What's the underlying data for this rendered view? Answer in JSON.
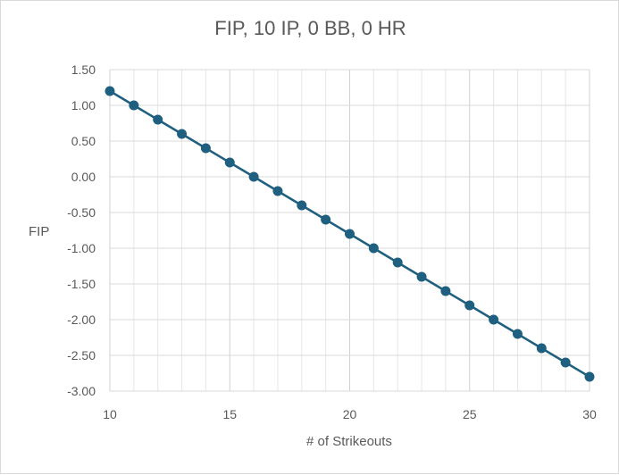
{
  "chart_data": {
    "type": "scatter",
    "title": "FIP, 10 IP, 0 BB, 0 HR",
    "xlabel": "# of Strikeouts",
    "ylabel": "FIP",
    "xlim": [
      10,
      30
    ],
    "ylim": [
      -3.0,
      1.5
    ],
    "x_ticks": [
      "10",
      "15",
      "20",
      "25",
      "30"
    ],
    "y_ticks": [
      "1.50",
      "1.00",
      "0.50",
      "0.00",
      "-0.50",
      "-1.00",
      "-1.50",
      "-2.00",
      "-2.50",
      "-3.00"
    ],
    "grid": true,
    "legend": "none",
    "line_color": "#1f5f7f",
    "marker_color": "#1f5f7f",
    "series": [
      {
        "x": [
          10,
          11,
          12,
          13,
          14,
          15,
          16,
          17,
          18,
          19,
          20,
          21,
          22,
          23,
          24,
          25,
          26,
          27,
          28,
          29,
          30
        ],
        "y": [
          1.2,
          1.0,
          0.8,
          0.6,
          0.4,
          0.2,
          0.0,
          -0.2,
          -0.4,
          -0.6,
          -0.8,
          -1.0,
          -1.2,
          -1.4,
          -1.6,
          -1.8,
          -2.0,
          -2.2,
          -2.4,
          -2.6,
          -2.8
        ]
      }
    ]
  }
}
